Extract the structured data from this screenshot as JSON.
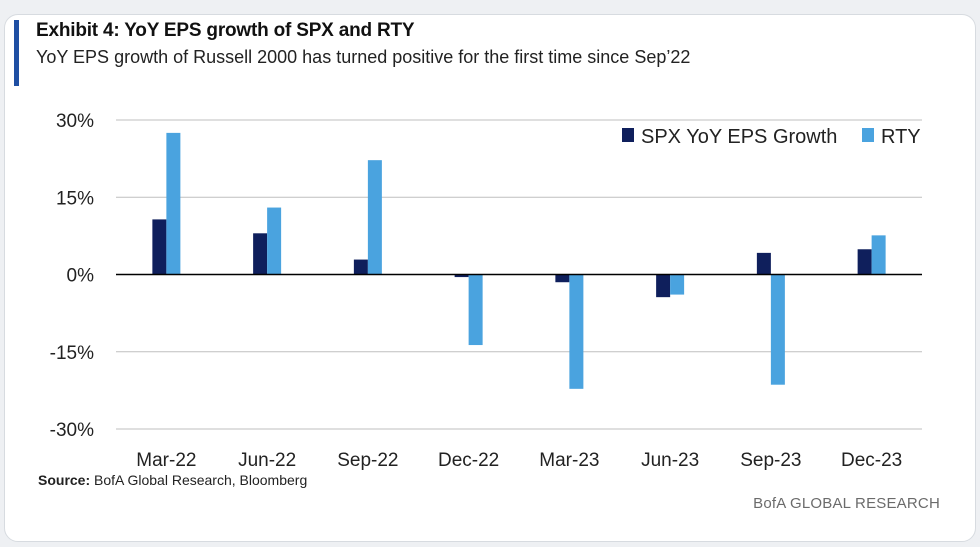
{
  "header": {
    "title": "Exhibit 4: YoY EPS growth of SPX and RTY",
    "subtitle": "YoY EPS growth of Russell 2000 has turned positive for the first time since Sep’22"
  },
  "footer": {
    "source_label": "Source:",
    "source_text": "BofA Global Research, Bloomberg",
    "brand": "BofA GLOBAL RESEARCH"
  },
  "colors": {
    "spx": "#0f1f5c",
    "rty": "#4aa3df",
    "accent": "#1f4fa3",
    "grid": "#bfbfbf",
    "zero_line": "#000000"
  },
  "chart_data": {
    "type": "bar",
    "title": "Exhibit 4: YoY EPS growth of SPX and RTY",
    "subtitle": "YoY EPS growth of Russell 2000 has turned positive for the first time since Sep’22",
    "categories": [
      "Mar-22",
      "Jun-22",
      "Sep-22",
      "Dec-22",
      "Mar-23",
      "Jun-23",
      "Sep-23",
      "Dec-23"
    ],
    "series": [
      {
        "name": "SPX YoY EPS Growth",
        "values": [
          10.7,
          8.0,
          2.9,
          -0.5,
          -1.5,
          -4.4,
          4.2,
          4.9
        ]
      },
      {
        "name": "RTY",
        "values": [
          27.5,
          13.0,
          22.2,
          -13.7,
          -22.2,
          -3.9,
          -21.4,
          7.6
        ]
      }
    ],
    "ylim": [
      -30,
      30
    ],
    "yticks": [
      30,
      15,
      0,
      -15,
      -30
    ],
    "ytick_labels": [
      "30%",
      "15%",
      "0%",
      "-15%",
      "-30%"
    ],
    "grid": true,
    "legend_position": "top-right"
  }
}
